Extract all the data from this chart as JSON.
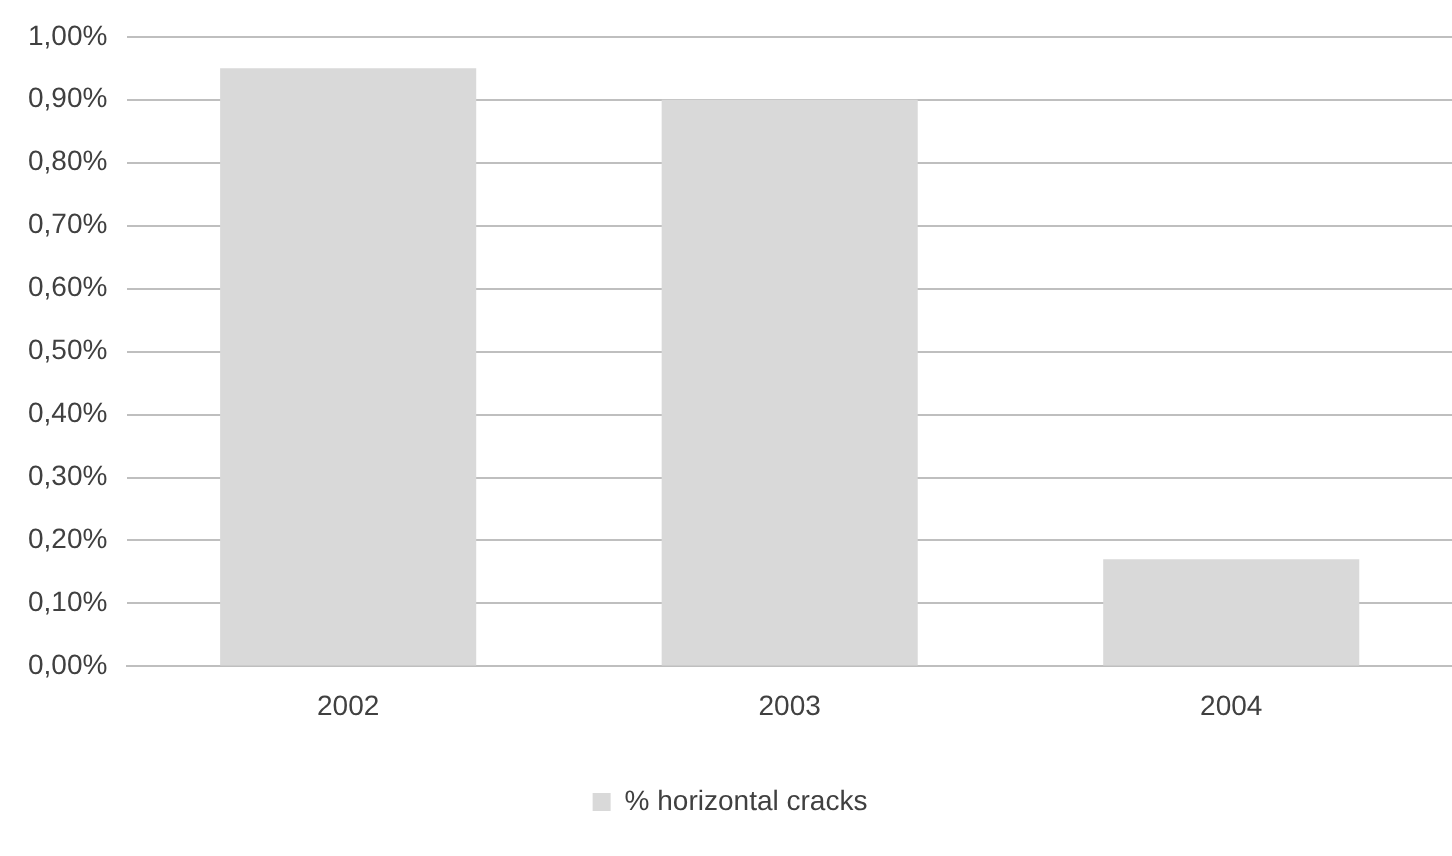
{
  "chart_data": {
    "type": "bar",
    "categories": [
      "2002",
      "2003",
      "2004"
    ],
    "series": [
      {
        "name": "% horizontal cracks",
        "color": "#d9d9d9",
        "values": [
          0.95,
          0.9,
          0.17
        ]
      }
    ],
    "ylim": [
      0,
      1
    ],
    "yticks": [
      {
        "value": 0,
        "label": "0,00%"
      },
      {
        "value": 0.1,
        "label": "0,10%"
      },
      {
        "value": 0.2,
        "label": "0,20%"
      },
      {
        "value": 0.3,
        "label": "0,30%"
      },
      {
        "value": 0.4,
        "label": "0,40%"
      },
      {
        "value": 0.5,
        "label": "0,50%"
      },
      {
        "value": 0.6,
        "label": "0,60%"
      },
      {
        "value": 0.7,
        "label": "0,70%"
      },
      {
        "value": 0.8,
        "label": "0,80%"
      },
      {
        "value": 0.9,
        "label": "0,90%"
      },
      {
        "value": 1,
        "label": "1,00%"
      }
    ],
    "grid": "y",
    "legend": "bottom"
  }
}
